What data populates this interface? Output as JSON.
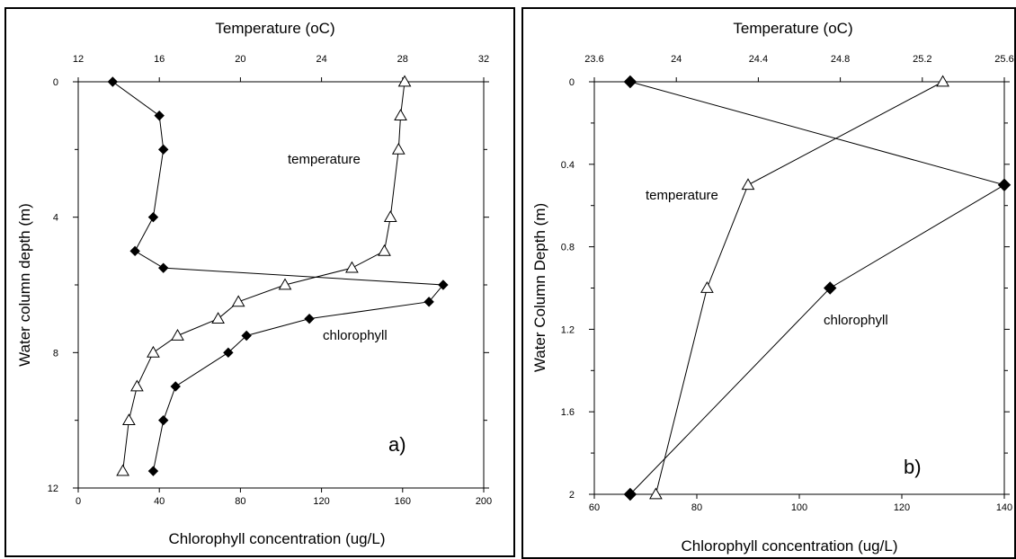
{
  "chart_data": [
    {
      "type": "line",
      "panel_label": "a)",
      "top_axis": {
        "label": "Temperature (oC)",
        "range": [
          12,
          32
        ],
        "ticks": [
          "12",
          "16",
          "20",
          "24",
          "28",
          "32"
        ]
      },
      "bottom_axis": {
        "label": "Chlorophyll concentration (ug/L)",
        "range": [
          0,
          200
        ],
        "ticks": [
          "0",
          "40",
          "80",
          "120",
          "160",
          "200"
        ]
      },
      "y_axis": {
        "label": "Water column depth (m)",
        "range": [
          0,
          12
        ],
        "inverted": true,
        "ticks": [
          "0",
          "4",
          "8",
          "12"
        ]
      },
      "series": [
        {
          "name": "chlorophyll",
          "axis": "bottom",
          "marker": "filled-diamond",
          "points": [
            {
              "x": 17,
              "y": 0
            },
            {
              "x": 40,
              "y": 1
            },
            {
              "x": 42,
              "y": 2
            },
            {
              "x": 37,
              "y": 4
            },
            {
              "x": 28,
              "y": 5
            },
            {
              "x": 42,
              "y": 5.5
            },
            {
              "x": 180,
              "y": 6
            },
            {
              "x": 173,
              "y": 6.5
            },
            {
              "x": 114,
              "y": 7
            },
            {
              "x": 83,
              "y": 7.5
            },
            {
              "x": 74,
              "y": 8
            },
            {
              "x": 48,
              "y": 9
            },
            {
              "x": 42,
              "y": 10
            },
            {
              "x": 37,
              "y": 11.5
            }
          ]
        },
        {
          "name": "temperature",
          "axis": "top",
          "marker": "open-triangle",
          "points": [
            {
              "x": 28.1,
              "y": 0
            },
            {
              "x": 27.9,
              "y": 1
            },
            {
              "x": 27.8,
              "y": 2
            },
            {
              "x": 27.4,
              "y": 4
            },
            {
              "x": 27.1,
              "y": 5
            },
            {
              "x": 25.5,
              "y": 5.5
            },
            {
              "x": 22.2,
              "y": 6
            },
            {
              "x": 19.9,
              "y": 6.5
            },
            {
              "x": 18.9,
              "y": 7
            },
            {
              "x": 16.9,
              "y": 7.5
            },
            {
              "x": 15.7,
              "y": 8
            },
            {
              "x": 14.9,
              "y": 9
            },
            {
              "x": 14.5,
              "y": 10
            },
            {
              "x": 14.2,
              "y": 11.5
            }
          ]
        }
      ]
    },
    {
      "type": "line",
      "panel_label": "b)",
      "top_axis": {
        "label": "Temperature (oC)",
        "range": [
          23.6,
          25.6
        ],
        "ticks": [
          "23.6",
          "24",
          "24.4",
          "24.8",
          "25.2",
          "25.6"
        ]
      },
      "bottom_axis": {
        "label": "Chlorophyll concentration (ug/L)",
        "range": [
          60,
          140
        ],
        "ticks": [
          "60",
          "80",
          "100",
          "120",
          "140"
        ]
      },
      "y_axis": {
        "label": "Water Column Depth (m)",
        "range": [
          0,
          2
        ],
        "inverted": true,
        "ticks": [
          "0",
          "0.4",
          "0.8",
          "1.2",
          "1.6",
          "2"
        ]
      },
      "series": [
        {
          "name": "chlorophyll",
          "axis": "bottom",
          "marker": "filled-diamond",
          "points": [
            {
              "x": 67,
              "y": 0
            },
            {
              "x": 140,
              "y": 0.5
            },
            {
              "x": 106,
              "y": 1
            },
            {
              "x": 67,
              "y": 2
            }
          ]
        },
        {
          "name": "temperature",
          "axis": "top",
          "marker": "open-triangle",
          "points": [
            {
              "x": 25.3,
              "y": 0
            },
            {
              "x": 24.35,
              "y": 0.5
            },
            {
              "x": 24.15,
              "y": 1
            },
            {
              "x": 23.9,
              "y": 2
            }
          ]
        }
      ]
    }
  ]
}
